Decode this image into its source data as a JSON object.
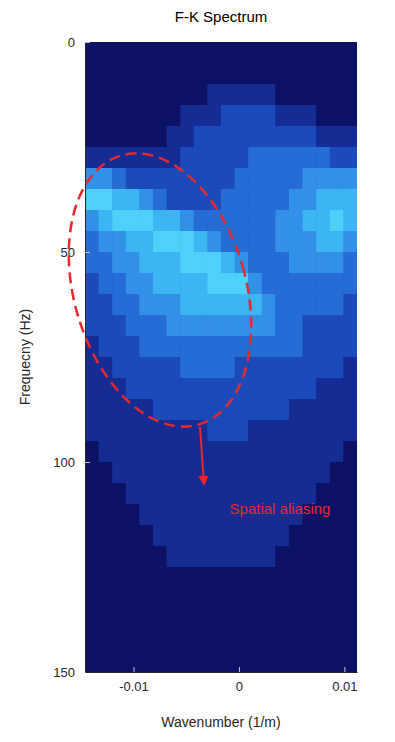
{
  "chart_data": {
    "type": "heatmap",
    "title": "F-K Spectrum",
    "x_label": "Wavenumber (1/m)",
    "y_label": "Frequecny (Hz)",
    "xlim": [
      -0.0146,
      0.0112
    ],
    "ylim": [
      0,
      150
    ],
    "xticks": [
      -0.01,
      0,
      0.01
    ],
    "yticks": [
      0,
      50,
      100,
      150
    ],
    "x": [
      -0.01396,
      -0.01267,
      -0.01138,
      -0.01009,
      -0.0088,
      -0.00751,
      -0.00622,
      -0.00493,
      -0.00364,
      -0.00235,
      -0.00106,
      0.00023,
      0.00152,
      0.00281,
      0.0041,
      0.00539,
      0.00668,
      0.00797,
      0.00926,
      0.01055
    ],
    "y": [
      2.5,
      7.5,
      12.5,
      17.5,
      22.5,
      27.5,
      32.5,
      37.5,
      42.5,
      47.5,
      52.5,
      57.5,
      62.5,
      67.5,
      72.5,
      77.5,
      82.5,
      87.5,
      92.5,
      97.5,
      102.5,
      107.5,
      112.5,
      117.5,
      122.5,
      127.5,
      132.5,
      137.5,
      142.5,
      147.5
    ],
    "zlim": [
      0,
      7
    ],
    "z": [
      [
        0,
        0,
        0,
        0,
        0,
        0,
        0,
        0,
        0,
        0,
        0,
        0,
        0,
        0,
        0,
        0,
        0,
        0,
        0,
        0
      ],
      [
        0,
        0,
        0,
        0,
        0,
        0,
        0,
        0,
        0,
        0,
        0,
        0,
        0,
        0,
        0,
        0,
        0,
        0,
        0,
        0
      ],
      [
        0,
        0,
        0,
        0,
        0,
        0,
        0,
        0,
        0,
        1,
        1,
        1,
        1,
        1,
        0,
        0,
        0,
        0,
        0,
        0
      ],
      [
        0,
        0,
        0,
        0,
        0,
        0,
        0,
        1,
        1,
        1,
        2,
        2,
        2,
        2,
        1,
        1,
        1,
        0,
        0,
        0
      ],
      [
        0,
        0,
        0,
        0,
        0,
        0,
        1,
        1,
        2,
        2,
        2,
        2,
        2,
        2,
        2,
        2,
        2,
        1,
        1,
        1
      ],
      [
        1,
        1,
        1,
        1,
        1,
        1,
        1,
        2,
        2,
        2,
        2,
        2,
        3,
        3,
        3,
        3,
        3,
        3,
        2,
        2
      ],
      [
        4,
        4,
        3,
        2,
        2,
        2,
        2,
        2,
        2,
        2,
        2,
        3,
        3,
        3,
        3,
        3,
        4,
        4,
        4,
        4
      ],
      [
        6,
        6,
        5,
        5,
        4,
        3,
        2,
        2,
        2,
        2,
        3,
        3,
        3,
        3,
        3,
        4,
        4,
        5,
        5,
        5
      ],
      [
        4,
        5,
        6,
        6,
        6,
        5,
        5,
        4,
        3,
        3,
        3,
        3,
        3,
        3,
        4,
        4,
        5,
        5,
        6,
        5
      ],
      [
        3,
        4,
        4,
        5,
        5,
        6,
        6,
        6,
        5,
        4,
        3,
        3,
        3,
        3,
        4,
        4,
        4,
        5,
        5,
        4
      ],
      [
        3,
        3,
        4,
        4,
        5,
        5,
        5,
        6,
        6,
        6,
        5,
        4,
        3,
        3,
        3,
        4,
        4,
        4,
        4,
        3
      ],
      [
        2,
        3,
        3,
        4,
        4,
        5,
        5,
        5,
        5,
        6,
        6,
        6,
        4,
        3,
        3,
        3,
        3,
        3,
        3,
        3
      ],
      [
        2,
        2,
        3,
        3,
        4,
        4,
        4,
        5,
        5,
        5,
        5,
        5,
        5,
        4,
        3,
        3,
        3,
        3,
        3,
        2
      ],
      [
        2,
        2,
        2,
        3,
        3,
        3,
        4,
        4,
        4,
        4,
        4,
        4,
        4,
        4,
        3,
        3,
        2,
        2,
        2,
        2
      ],
      [
        1,
        2,
        2,
        2,
        3,
        3,
        3,
        3,
        3,
        3,
        3,
        3,
        3,
        3,
        3,
        3,
        2,
        2,
        2,
        2
      ],
      [
        1,
        1,
        2,
        2,
        2,
        2,
        2,
        3,
        3,
        3,
        3,
        2,
        2,
        2,
        2,
        2,
        2,
        2,
        2,
        1
      ],
      [
        1,
        1,
        1,
        2,
        2,
        2,
        2,
        2,
        2,
        2,
        2,
        2,
        2,
        2,
        2,
        2,
        2,
        1,
        1,
        1
      ],
      [
        1,
        1,
        1,
        1,
        1,
        2,
        2,
        2,
        2,
        2,
        2,
        2,
        2,
        2,
        2,
        1,
        1,
        1,
        1,
        1
      ],
      [
        1,
        1,
        1,
        1,
        1,
        1,
        1,
        1,
        1,
        2,
        2,
        2,
        1,
        1,
        1,
        1,
        1,
        1,
        1,
        1
      ],
      [
        0,
        1,
        1,
        1,
        1,
        1,
        1,
        1,
        1,
        1,
        1,
        1,
        1,
        1,
        1,
        1,
        1,
        1,
        1,
        0
      ],
      [
        0,
        0,
        1,
        1,
        1,
        1,
        1,
        1,
        1,
        1,
        1,
        1,
        1,
        1,
        1,
        1,
        1,
        1,
        0,
        0
      ],
      [
        0,
        0,
        0,
        1,
        1,
        1,
        1,
        1,
        1,
        1,
        1,
        1,
        1,
        1,
        1,
        1,
        1,
        0,
        0,
        0
      ],
      [
        0,
        0,
        0,
        0,
        1,
        1,
        1,
        1,
        1,
        1,
        1,
        1,
        1,
        1,
        1,
        1,
        0,
        0,
        0,
        0
      ],
      [
        0,
        0,
        0,
        0,
        0,
        1,
        1,
        1,
        1,
        1,
        1,
        1,
        1,
        1,
        1,
        0,
        0,
        0,
        0,
        0
      ],
      [
        0,
        0,
        0,
        0,
        0,
        0,
        1,
        1,
        1,
        1,
        1,
        1,
        1,
        1,
        0,
        0,
        0,
        0,
        0,
        0
      ],
      [
        0,
        0,
        0,
        0,
        0,
        0,
        0,
        0,
        0,
        0,
        0,
        0,
        0,
        0,
        0,
        0,
        0,
        0,
        0,
        0
      ],
      [
        0,
        0,
        0,
        0,
        0,
        0,
        0,
        0,
        0,
        0,
        0,
        0,
        0,
        0,
        0,
        0,
        0,
        0,
        0,
        0
      ],
      [
        0,
        0,
        0,
        0,
        0,
        0,
        0,
        0,
        0,
        0,
        0,
        0,
        0,
        0,
        0,
        0,
        0,
        0,
        0,
        0
      ],
      [
        0,
        0,
        0,
        0,
        0,
        0,
        0,
        0,
        0,
        0,
        0,
        0,
        0,
        0,
        0,
        0,
        0,
        0,
        0,
        0
      ],
      [
        0,
        0,
        0,
        0,
        0,
        0,
        0,
        0,
        0,
        0,
        0,
        0,
        0,
        0,
        0,
        0,
        0,
        0,
        0,
        0
      ]
    ],
    "annotations": [
      {
        "text": "Spatial aliasing"
      }
    ]
  }
}
